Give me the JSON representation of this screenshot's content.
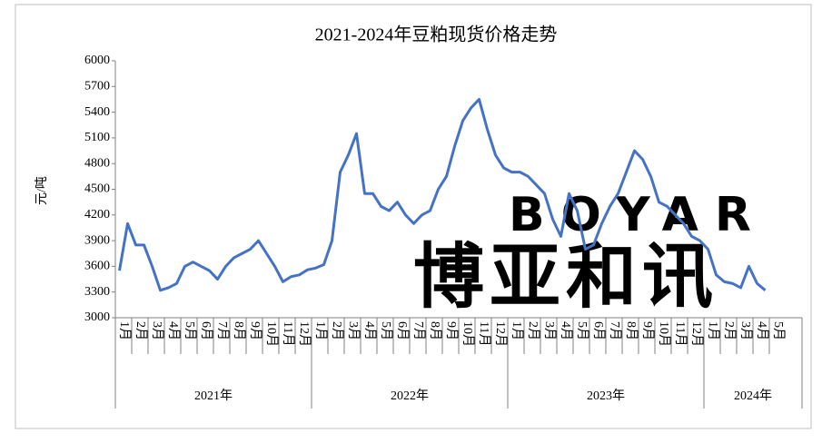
{
  "chart_data": {
    "type": "line",
    "title": "2021-2024年豆粕现货价格走势",
    "y_label": "元/吨",
    "watermark_en": "BOYAR",
    "watermark_cn": "博亚和讯",
    "ylim": [
      3000,
      6000
    ],
    "yticks": [
      3000,
      3300,
      3600,
      3900,
      4200,
      4500,
      4800,
      5100,
      5400,
      5700,
      6000
    ],
    "groups": [
      {
        "name": "2021年",
        "span": 24
      },
      {
        "name": "2022年",
        "span": 24
      },
      {
        "name": "2023年",
        "span": 24
      },
      {
        "name": "2024年",
        "span": 12
      }
    ],
    "categories": [
      "1月",
      null,
      "2月",
      null,
      "3月",
      null,
      "4月",
      null,
      "5月",
      null,
      "6月",
      null,
      "7月",
      null,
      "8月",
      null,
      "9月",
      null,
      "10月",
      null,
      "11月",
      null,
      "12月",
      null,
      "1月",
      null,
      "2月",
      null,
      "3月",
      null,
      "4月",
      null,
      "5月",
      null,
      "6月",
      null,
      "7月",
      null,
      "8月",
      null,
      "9月",
      null,
      "10月",
      null,
      "11月",
      null,
      "12月",
      null,
      "1月",
      null,
      "2月",
      null,
      "3月",
      null,
      "4月",
      null,
      "5月",
      null,
      "6月",
      null,
      "7月",
      null,
      "8月",
      null,
      "9月",
      null,
      "10月",
      null,
      "11月",
      null,
      "12月",
      null,
      "1月",
      null,
      "2月",
      null,
      "3月",
      null,
      "4月",
      null,
      "5月",
      null,
      null,
      null
    ],
    "series": [
      {
        "name": "豆粕现货价格",
        "color": "#4472c4",
        "values": [
          3550,
          4100,
          3850,
          3850,
          3600,
          3320,
          3350,
          3400,
          3600,
          3650,
          3600,
          3550,
          3450,
          3600,
          3700,
          3750,
          3800,
          3900,
          3750,
          3600,
          3420,
          3480,
          3500,
          3560,
          3580,
          3620,
          3900,
          4700,
          4900,
          5150,
          4450,
          4450,
          4300,
          4250,
          4350,
          4200,
          4100,
          4200,
          4250,
          4500,
          4650,
          5000,
          5300,
          5450,
          5550,
          5200,
          4900,
          4750,
          4700,
          4700,
          4650,
          4550,
          4450,
          4150,
          3950,
          4450,
          4250,
          3800,
          3850,
          4100,
          4300,
          4450,
          4700,
          4950,
          4850,
          4650,
          4350,
          4300,
          4200,
          4100,
          3950,
          3900,
          3800,
          3500,
          3420,
          3400,
          3350,
          3600,
          3400,
          3320,
          null,
          null,
          null,
          null
        ]
      }
    ]
  }
}
